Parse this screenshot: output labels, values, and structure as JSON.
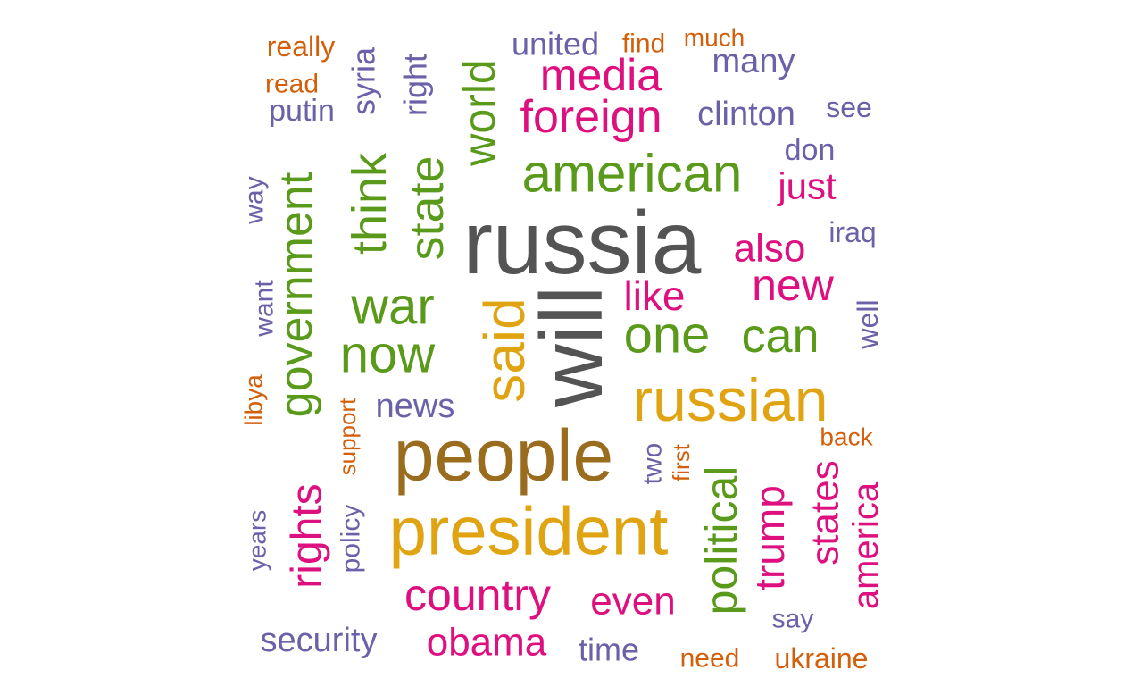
{
  "colors": {
    "gray": "#545454",
    "brown": "#9a6c1e",
    "gold": "#e0a412",
    "green": "#5a9a1a",
    "magenta": "#de0f7f",
    "purple": "#6a61a8",
    "orange": "#d35f0a"
  },
  "words": [
    {
      "text": "russia",
      "color": "gray"
    },
    {
      "text": "will",
      "color": "gray"
    },
    {
      "text": "people",
      "color": "brown"
    },
    {
      "text": "president",
      "color": "gold"
    },
    {
      "text": "russian",
      "color": "gold"
    },
    {
      "text": "said",
      "color": "gold"
    },
    {
      "text": "american",
      "color": "green"
    },
    {
      "text": "government",
      "color": "green"
    },
    {
      "text": "now",
      "color": "green"
    },
    {
      "text": "war",
      "color": "green"
    },
    {
      "text": "one",
      "color": "green"
    },
    {
      "text": "can",
      "color": "green"
    },
    {
      "text": "state",
      "color": "green"
    },
    {
      "text": "think",
      "color": "green"
    },
    {
      "text": "world",
      "color": "green"
    },
    {
      "text": "political",
      "color": "green"
    },
    {
      "text": "foreign",
      "color": "magenta"
    },
    {
      "text": "media",
      "color": "magenta"
    },
    {
      "text": "country",
      "color": "magenta"
    },
    {
      "text": "obama",
      "color": "magenta"
    },
    {
      "text": "rights",
      "color": "magenta"
    },
    {
      "text": "trump",
      "color": "magenta"
    },
    {
      "text": "new",
      "color": "magenta"
    },
    {
      "text": "like",
      "color": "magenta"
    },
    {
      "text": "also",
      "color": "magenta"
    },
    {
      "text": "even",
      "color": "magenta"
    },
    {
      "text": "just",
      "color": "magenta"
    },
    {
      "text": "states",
      "color": "magenta"
    },
    {
      "text": "america",
      "color": "magenta"
    },
    {
      "text": "news",
      "color": "purple"
    },
    {
      "text": "security",
      "color": "purple"
    },
    {
      "text": "clinton",
      "color": "purple"
    },
    {
      "text": "many",
      "color": "purple"
    },
    {
      "text": "united",
      "color": "purple"
    },
    {
      "text": "time",
      "color": "purple"
    },
    {
      "text": "right",
      "color": "purple"
    },
    {
      "text": "syria",
      "color": "purple"
    },
    {
      "text": "putin",
      "color": "purple"
    },
    {
      "text": "don",
      "color": "purple"
    },
    {
      "text": "see",
      "color": "purple"
    },
    {
      "text": "iraq",
      "color": "purple"
    },
    {
      "text": "well",
      "color": "purple"
    },
    {
      "text": "two",
      "color": "purple"
    },
    {
      "text": "say",
      "color": "purple"
    },
    {
      "text": "way",
      "color": "purple"
    },
    {
      "text": "want",
      "color": "purple"
    },
    {
      "text": "years",
      "color": "purple"
    },
    {
      "text": "policy",
      "color": "purple"
    },
    {
      "text": "really",
      "color": "orange"
    },
    {
      "text": "read",
      "color": "orange"
    },
    {
      "text": "find",
      "color": "orange"
    },
    {
      "text": "much",
      "color": "orange"
    },
    {
      "text": "libya",
      "color": "orange"
    },
    {
      "text": "support",
      "color": "orange"
    },
    {
      "text": "first",
      "color": "orange"
    },
    {
      "text": "back",
      "color": "orange"
    },
    {
      "text": "need",
      "color": "orange"
    },
    {
      "text": "ukraine",
      "color": "orange"
    }
  ]
}
